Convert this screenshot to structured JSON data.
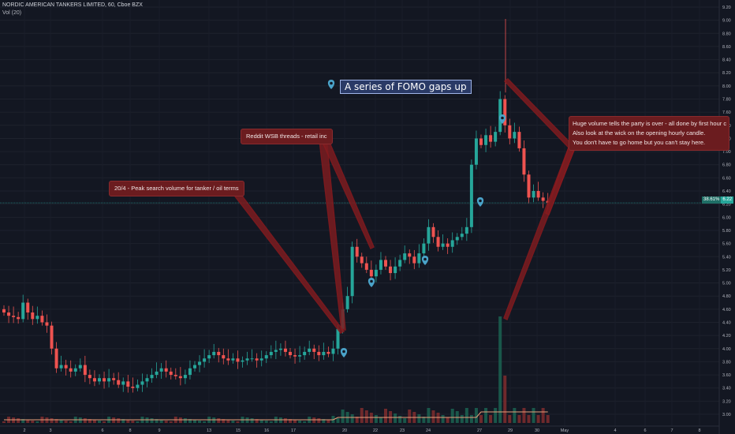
{
  "header": {
    "title": "NORDIC AMERICAN TANKERS LIMITED, 60, Cboe BZX",
    "volume_label": "Vol (20)"
  },
  "annotations": {
    "main_note": "A series of FOMO gaps up",
    "search_note": "20/4 - Peak search volume for tanker / oil terms",
    "reddit_note": "Reddit WSB threads - retail inc",
    "volume_note_lines": [
      "Huge volume tells the party is over - all done by first hour c",
      "Also look at the wick on the opening hourly candle.",
      "You don't have to go home but you can't stay here."
    ]
  },
  "price_tag": {
    "percent": "38.61%",
    "price": "6.22"
  },
  "colors": {
    "background": "#131722",
    "up": "#26a69a",
    "down": "#ef5350",
    "annotation": "#8b1a1e",
    "marker": "#4aa3c9",
    "ma_line": "#e8a07a"
  },
  "chart_data": {
    "type": "candlestick",
    "title": "NORDIC AMERICAN TANKERS LIMITED, 60, Cboe BZX",
    "y_ticks": [
      3.0,
      3.2,
      3.4,
      3.6,
      3.8,
      4.0,
      4.2,
      4.4,
      4.6,
      4.8,
      5.0,
      5.2,
      5.4,
      5.6,
      5.8,
      6.0,
      6.2,
      6.4,
      6.6,
      6.8,
      7.0,
      7.2,
      7.4,
      7.6,
      7.8,
      8.0,
      8.2,
      8.4,
      8.6,
      8.8,
      9.0,
      9.2
    ],
    "y_tick_labels": [
      "3.00",
      "3.20",
      "3.40",
      "3.60",
      "3.80",
      "4.00",
      "4.20",
      "4.40",
      "4.60",
      "4.80",
      "5.00",
      "5.20",
      "5.40",
      "5.60",
      "5.80",
      "6.00",
      "6.20",
      "6.40",
      "6.60",
      "6.80",
      "7.00",
      "7.20",
      "7.40",
      "7.60",
      "7.80",
      "8.00",
      "8.20",
      "8.40",
      "8.60",
      "8.80",
      "9.00",
      "9.20"
    ],
    "x_labels": [
      "2",
      "3",
      "6",
      "8",
      "9",
      "13",
      "15",
      "16",
      "17",
      "20",
      "22",
      "23",
      "24",
      "27",
      "29",
      "30",
      "May",
      "4",
      "6",
      "7",
      "8"
    ],
    "ylim": [
      2.9,
      9.3
    ],
    "current_price": 6.22,
    "close_series": [
      4.55,
      4.5,
      4.48,
      4.45,
      4.7,
      4.55,
      4.45,
      4.5,
      4.4,
      4.35,
      4.0,
      3.7,
      3.75,
      3.7,
      3.65,
      3.7,
      3.75,
      3.6,
      3.55,
      3.5,
      3.55,
      3.5,
      3.55,
      3.52,
      3.45,
      3.5,
      3.42,
      3.4,
      3.45,
      3.5,
      3.55,
      3.6,
      3.65,
      3.7,
      3.65,
      3.6,
      3.58,
      3.55,
      3.6,
      3.7,
      3.75,
      3.8,
      3.85,
      3.9,
      3.95,
      3.9,
      3.85,
      3.82,
      3.85,
      3.8,
      3.82,
      3.85,
      3.85,
      3.82,
      3.85,
      3.9,
      3.95,
      3.98,
      4.0,
      3.95,
      3.9,
      3.88,
      3.9,
      3.95,
      4.0,
      3.95,
      3.9,
      3.95,
      3.92,
      4.0,
      4.3,
      4.6,
      4.8,
      5.55,
      5.4,
      5.3,
      5.2,
      5.1,
      5.2,
      5.35,
      5.25,
      5.15,
      5.25,
      5.35,
      5.45,
      5.4,
      5.3,
      5.45,
      5.6,
      5.85,
      5.7,
      5.55,
      5.6,
      5.55,
      5.65,
      5.7,
      5.75,
      5.85,
      6.8,
      7.2,
      7.1,
      7.25,
      7.15,
      7.3,
      7.8,
      7.4,
      7.2,
      7.3,
      7.05,
      6.65,
      6.3,
      6.4,
      6.3,
      6.25,
      6.22
    ],
    "volume_peak_x_label": "29"
  }
}
